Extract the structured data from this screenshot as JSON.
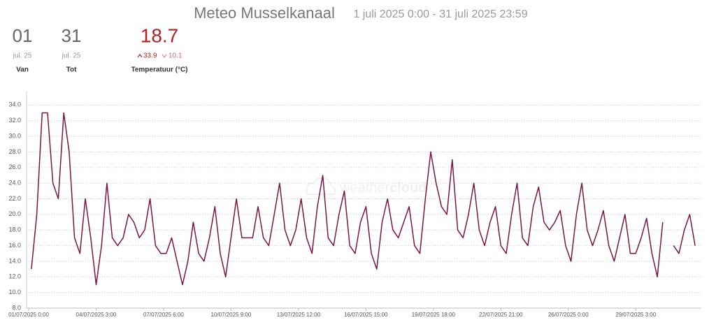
{
  "header": {
    "title": "Meteo Musselkanaal",
    "period": "1 juli 2025 0:00 - 31 juli 2025 23:59"
  },
  "stats": [
    {
      "value": "01",
      "sub": "jul. 25",
      "label": "Van"
    },
    {
      "value": "31",
      "sub": "jul. 25",
      "label": "Tot"
    }
  ],
  "temperature": {
    "value": "18.7",
    "max": "33.9",
    "min": "10.1",
    "label": "Temperatuur (°C)"
  },
  "watermark": [
    "weather",
    "cloud"
  ],
  "chart_data": {
    "type": "line",
    "color": "#7a1645",
    "grid": true,
    "xlim": [
      0,
      744
    ],
    "xticks": [
      {
        "value": 0,
        "label": "01/07/2025 0:00"
      },
      {
        "value": 75,
        "label": "04/07/2025 3:00"
      },
      {
        "value": 150,
        "label": "07/07/2025 6:00"
      },
      {
        "value": 225,
        "label": "10/07/2025 9:00"
      },
      {
        "value": 300,
        "label": "13/07/2025 12:00"
      },
      {
        "value": 375,
        "label": "16/07/2025 15:00"
      },
      {
        "value": 450,
        "label": "19/07/2025 18:00"
      },
      {
        "value": 525,
        "label": "22/07/2025 21:00"
      },
      {
        "value": 600,
        "label": "26/07/2025 0:00"
      },
      {
        "value": 675,
        "label": "29/07/2025 3:00"
      }
    ],
    "ylim": [
      8,
      36
    ],
    "yticks": [
      {
        "value": 8,
        "label": "8.0"
      },
      {
        "value": 10,
        "label": "10.0"
      },
      {
        "value": 12,
        "label": "12.0"
      },
      {
        "value": 14,
        "label": "14.0"
      },
      {
        "value": 16,
        "label": "16.0"
      },
      {
        "value": 18,
        "label": "18.0"
      },
      {
        "value": 20,
        "label": "20.0"
      },
      {
        "value": 22,
        "label": "22.0"
      },
      {
        "value": 24,
        "label": "24.0"
      },
      {
        "value": 26,
        "label": "26.0"
      },
      {
        "value": 28,
        "label": "28.0"
      },
      {
        "value": 30,
        "label": "30.0"
      },
      {
        "value": 32,
        "label": "32.0"
      },
      {
        "value": 34,
        "label": "34.0"
      }
    ],
    "x": [
      3,
      9,
      15,
      21,
      27,
      33,
      39,
      45,
      51,
      57,
      63,
      69,
      75,
      81,
      87,
      93,
      99,
      105,
      111,
      117,
      123,
      129,
      135,
      141,
      147,
      153,
      159,
      165,
      171,
      177,
      183,
      189,
      195,
      201,
      207,
      213,
      219,
      225,
      231,
      237,
      243,
      249,
      255,
      261,
      267,
      273,
      279,
      285,
      291,
      297,
      303,
      309,
      315,
      321,
      327,
      333,
      339,
      345,
      351,
      357,
      363,
      369,
      375,
      381,
      387,
      393,
      399,
      405,
      411,
      417,
      423,
      429,
      435,
      441,
      447,
      453,
      459,
      465,
      471,
      477,
      483,
      489,
      495,
      501,
      507,
      513,
      519,
      525,
      531,
      537,
      543,
      549,
      555,
      561,
      567,
      573,
      579,
      585,
      591,
      597,
      603,
      609,
      615,
      621,
      627,
      633,
      639,
      645,
      651,
      657,
      663,
      669,
      675,
      681,
      687,
      693,
      699,
      705,
      711,
      717,
      723,
      729,
      735,
      741
    ],
    "values": [
      13,
      20,
      33,
      33,
      24,
      22,
      33,
      28,
      17,
      15,
      22,
      17,
      11,
      16,
      24,
      17,
      16,
      17,
      20,
      19,
      17,
      18,
      22,
      16,
      15,
      15,
      17,
      14,
      11,
      14,
      19,
      15,
      14,
      17,
      21,
      15,
      12,
      17,
      22,
      17,
      17,
      17,
      21,
      17,
      16,
      20,
      24,
      18,
      16,
      18,
      22,
      17,
      15,
      21,
      25,
      17,
      16,
      20,
      23,
      16,
      15,
      19,
      21,
      15,
      13,
      19,
      22,
      18,
      17,
      19,
      21,
      16,
      15,
      22,
      28,
      24,
      21,
      20,
      27,
      18,
      17,
      20,
      24,
      18,
      16,
      19,
      21,
      16,
      15,
      20,
      24,
      17,
      16,
      21,
      23.5,
      19,
      18,
      19,
      20.5,
      16,
      14,
      20,
      24,
      18,
      16,
      18,
      20.5,
      16,
      14,
      17,
      20,
      15,
      15,
      17,
      19.5,
      15,
      12,
      19,
      null,
      16,
      15,
      18,
      20,
      16
    ]
  }
}
